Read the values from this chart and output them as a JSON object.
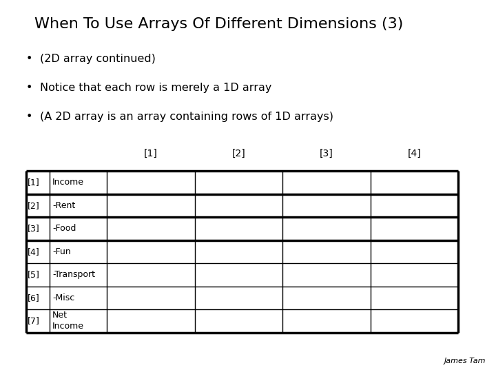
{
  "title": "When To Use Arrays Of Different Dimensions (3)",
  "bullets": [
    "(2D array continued)",
    "Notice that each row is merely a 1D array",
    "(A 2D array is an array containing rows of 1D arrays)"
  ],
  "col_headers": [
    "[1]",
    "[2]",
    "[3]",
    "[4]"
  ],
  "row_labels": [
    "[1]",
    "[2]",
    "[3]",
    "[4]",
    "[5]",
    "[6]",
    "[7]"
  ],
  "row_data": [
    "Income",
    "-Rent",
    "-Food",
    "-Fun",
    "-Transport",
    "-Misc",
    "Net\nIncome"
  ],
  "n_cols": 4,
  "n_rows": 7,
  "background_color": "#ffffff",
  "text_color": "#000000",
  "title_fontsize": 16,
  "bullet_fontsize": 11.5,
  "table_fontsize": 9,
  "col_header_fontsize": 10,
  "author": "James Tam",
  "author_fontsize": 8,
  "thick_line_after_rows": [
    0,
    1,
    2,
    6
  ],
  "thick_lw": 2.5,
  "thin_lw": 1.0
}
